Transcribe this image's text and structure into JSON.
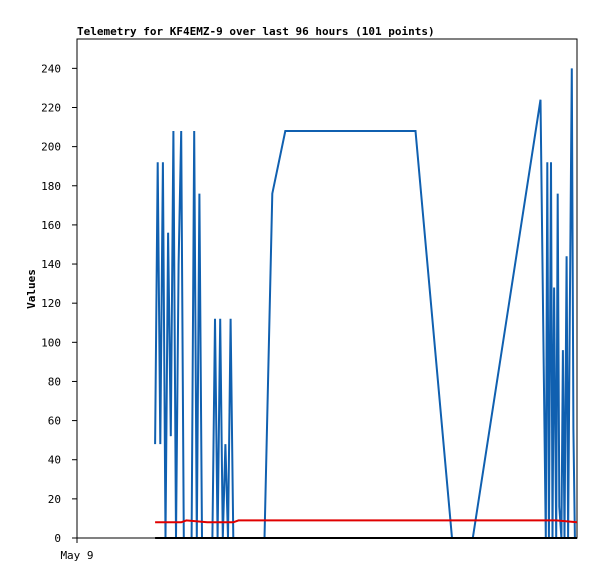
{
  "chart_data": {
    "type": "line",
    "title": "Telemetry for KF4EMZ-9 over last 96 hours (101 points)",
    "ylabel": "Values",
    "xlabel": "",
    "x_tick_labels": [
      "May 9"
    ],
    "ylim": [
      0,
      255
    ],
    "yticks": [
      0,
      20,
      40,
      60,
      80,
      100,
      120,
      140,
      160,
      180,
      200,
      220,
      240
    ],
    "grid": false,
    "legend": "none",
    "series": [
      {
        "color": "#1060b0",
        "x": [
          15.0,
          15.5,
          16.0,
          16.5,
          17.0,
          17.5,
          18.0,
          18.5,
          19.0,
          19.5,
          20.0,
          20.5,
          21.0,
          21.5,
          22.0,
          22.5,
          23.0,
          23.5,
          24.0,
          26.0,
          26.5,
          27.0,
          27.5,
          28.0,
          28.5,
          29.0,
          29.5,
          30.0,
          30.5,
          31.0,
          31.5,
          32.0,
          32.5,
          33.0,
          33.5,
          34.0,
          36.0,
          37.5,
          40.0,
          45.0,
          65.0,
          72.0,
          76.0,
          89.0,
          90.0,
          90.3,
          90.6,
          91.0,
          91.3,
          91.6,
          92.0,
          92.3,
          92.6,
          93.0,
          93.3,
          93.6,
          94.0,
          94.3,
          94.6,
          95.0,
          95.3,
          95.6,
          96.0
        ],
        "values": [
          48,
          192,
          48,
          192,
          0,
          156,
          52,
          208,
          0,
          140,
          208,
          0,
          0,
          0,
          0,
          208,
          0,
          176,
          0,
          0,
          112,
          0,
          112,
          0,
          48,
          0,
          112,
          0,
          0,
          0,
          0,
          0,
          0,
          0,
          0,
          0,
          0,
          176,
          208,
          208,
          208,
          0,
          0,
          224,
          0,
          192,
          0,
          192,
          0,
          128,
          0,
          176,
          16,
          0,
          96,
          0,
          144,
          0,
          108,
          240,
          56,
          0,
          0
        ]
      },
      {
        "color": "#e00000",
        "x": [
          15.0,
          20.0,
          21.0,
          25.0,
          30.0,
          31.0,
          35.0,
          40.0,
          80.0,
          85.0,
          90.0,
          92.0,
          96.0
        ],
        "values": [
          8,
          8,
          9,
          8,
          8,
          9,
          9,
          9,
          9,
          9,
          9,
          9,
          8
        ]
      },
      {
        "color": "#000000",
        "x": [
          15.0,
          96.0
        ],
        "values": [
          0,
          0
        ]
      }
    ]
  }
}
